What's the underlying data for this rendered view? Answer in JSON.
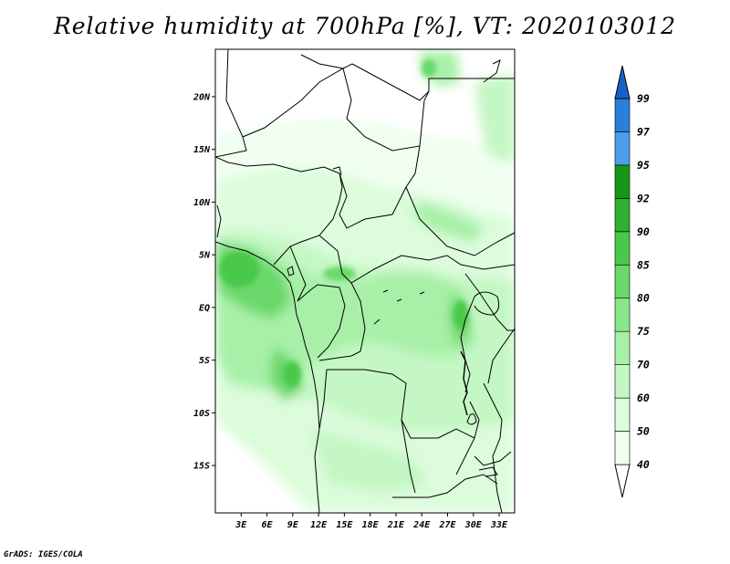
{
  "title": "Relative humidity at 700hPa [%], VT: 2020103012",
  "credit": "GrADS: IGES/COLA",
  "map": {
    "lat_labels": [
      "20N",
      "15N",
      "10N",
      "5N",
      "EQ",
      "5S",
      "10S",
      "15S"
    ],
    "lon_labels": [
      "3E",
      "6E",
      "9E",
      "12E",
      "15E",
      "18E",
      "21E",
      "24E",
      "27E",
      "30E",
      "33E"
    ],
    "lat_range": [
      -19.5,
      24.5
    ],
    "lon_range": [
      0,
      34.8
    ]
  },
  "colorbar": {
    "labels": [
      "40",
      "50",
      "60",
      "70",
      "75",
      "80",
      "85",
      "90",
      "92",
      "95",
      "97",
      "99"
    ],
    "colors": [
      "#ffffff",
      "#f0fff0",
      "#dcfcdc",
      "#c4f7c4",
      "#a8f0a8",
      "#8ae68a",
      "#6ad86a",
      "#4ac84a",
      "#2fb02f",
      "#189618",
      "#4d9eea",
      "#2a7fdd",
      "#1663c8"
    ]
  }
}
